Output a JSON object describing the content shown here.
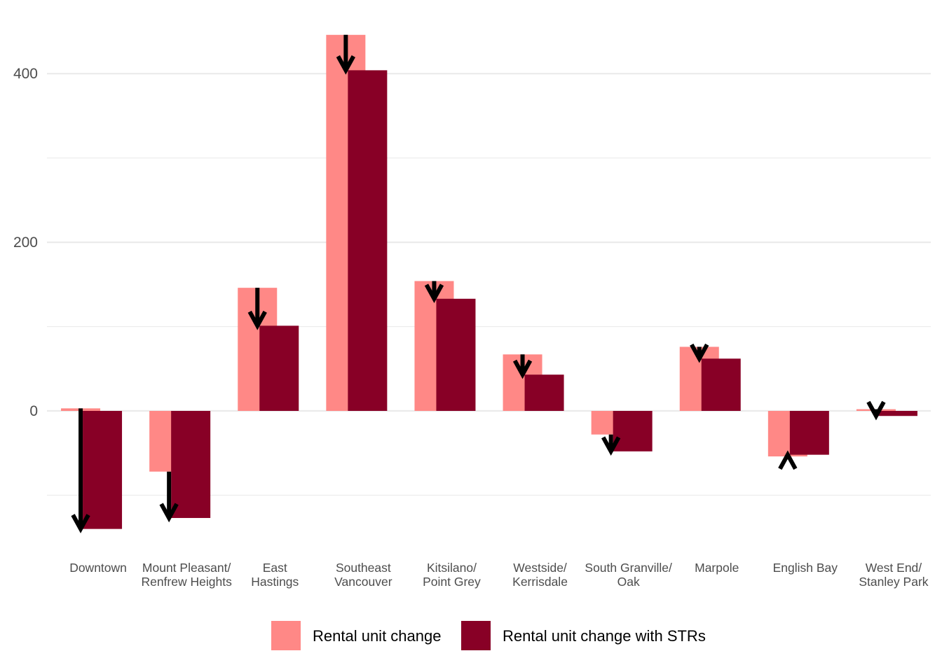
{
  "chart_data": {
    "type": "bar",
    "categories": [
      [
        "Downtown"
      ],
      [
        "Mount Pleasant/",
        "Renfrew Heights"
      ],
      [
        "East",
        "Hastings"
      ],
      [
        "Southeast",
        "Vancouver"
      ],
      [
        "Kitsilano/",
        "Point Grey"
      ],
      [
        "Westside/",
        "Kerrisdale"
      ],
      [
        "South Granville/",
        "Oak"
      ],
      [
        "Marpole"
      ],
      [
        "English Bay"
      ],
      [
        "West End/",
        "Stanley Park"
      ]
    ],
    "series": [
      {
        "name": "Rental unit change",
        "color": "#FF8886",
        "values": [
          3,
          -72,
          146,
          446,
          154,
          67,
          -28,
          76,
          -54,
          2
        ]
      },
      {
        "name": "Rental unit change with STRs",
        "color": "#880026",
        "values": [
          -140,
          -127,
          101,
          404,
          133,
          43,
          -48,
          62,
          -52,
          -6
        ]
      }
    ],
    "arrows": {
      "from_series": 0,
      "to_series": 1,
      "color": "#000000"
    },
    "ylim": [
      -167,
      458
    ],
    "yticks": [
      0,
      200,
      400
    ],
    "minor_gridlines": [
      -100,
      100,
      300
    ],
    "title": "",
    "xlabel": "",
    "ylabel": "",
    "grid": true,
    "legend_position": "bottom"
  }
}
